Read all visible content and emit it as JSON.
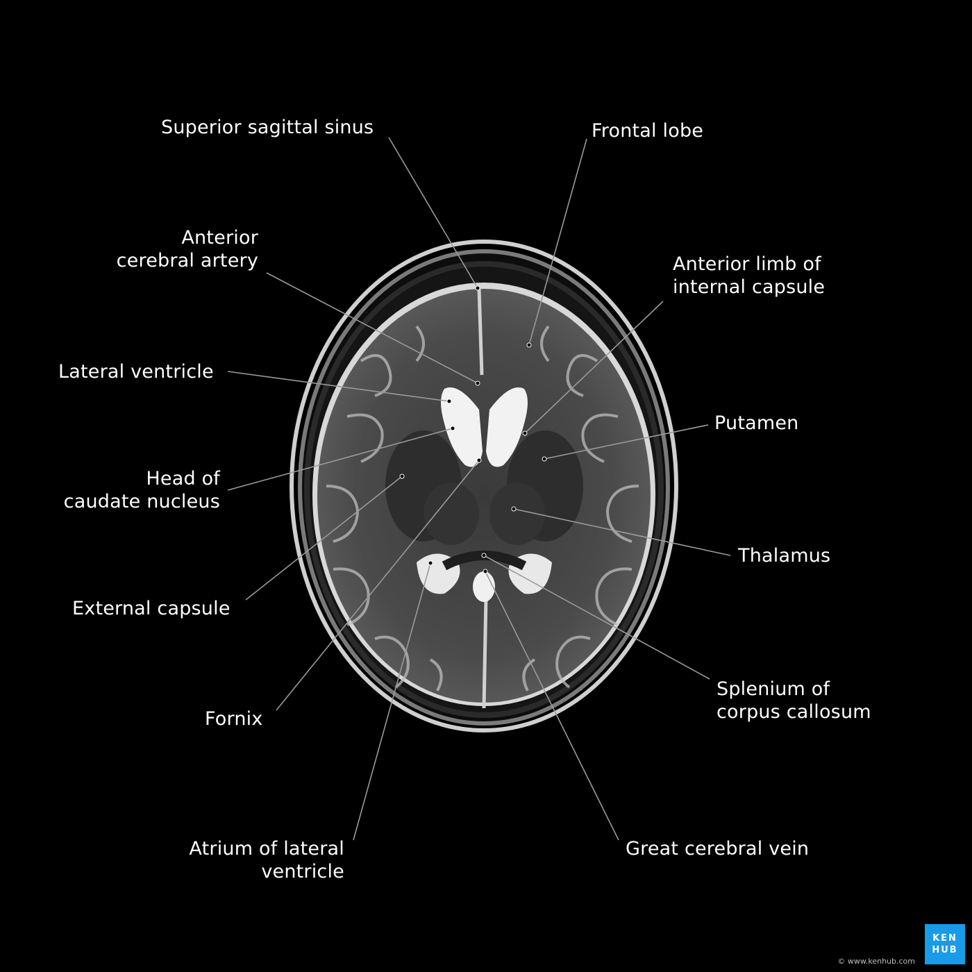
{
  "labels": {
    "superior_sagittal_sinus": "Superior sagittal sinus",
    "frontal_lobe": "Frontal lobe",
    "anterior_cerebral_artery": [
      "Anterior",
      "cerebral artery"
    ],
    "anterior_limb": [
      "Anterior limb of",
      "internal capsule"
    ],
    "lateral_ventricle": "Lateral ventricle",
    "putamen": "Putamen",
    "head_caudate": [
      "Head of",
      "caudate nucleus"
    ],
    "thalamus": "Thalamus",
    "external_capsule": "External capsule",
    "splenium": [
      "Splenium of",
      "corpus callosum"
    ],
    "fornix": "Fornix",
    "atrium": [
      "Atrium of lateral",
      "ventricle"
    ],
    "great_cerebral_vein": "Great cerebral vein"
  },
  "branding": {
    "logo_line1": "KEN",
    "logo_line2": "HUB",
    "credit": "© www.kenhub.com",
    "logo_color": "#1a9be8"
  }
}
